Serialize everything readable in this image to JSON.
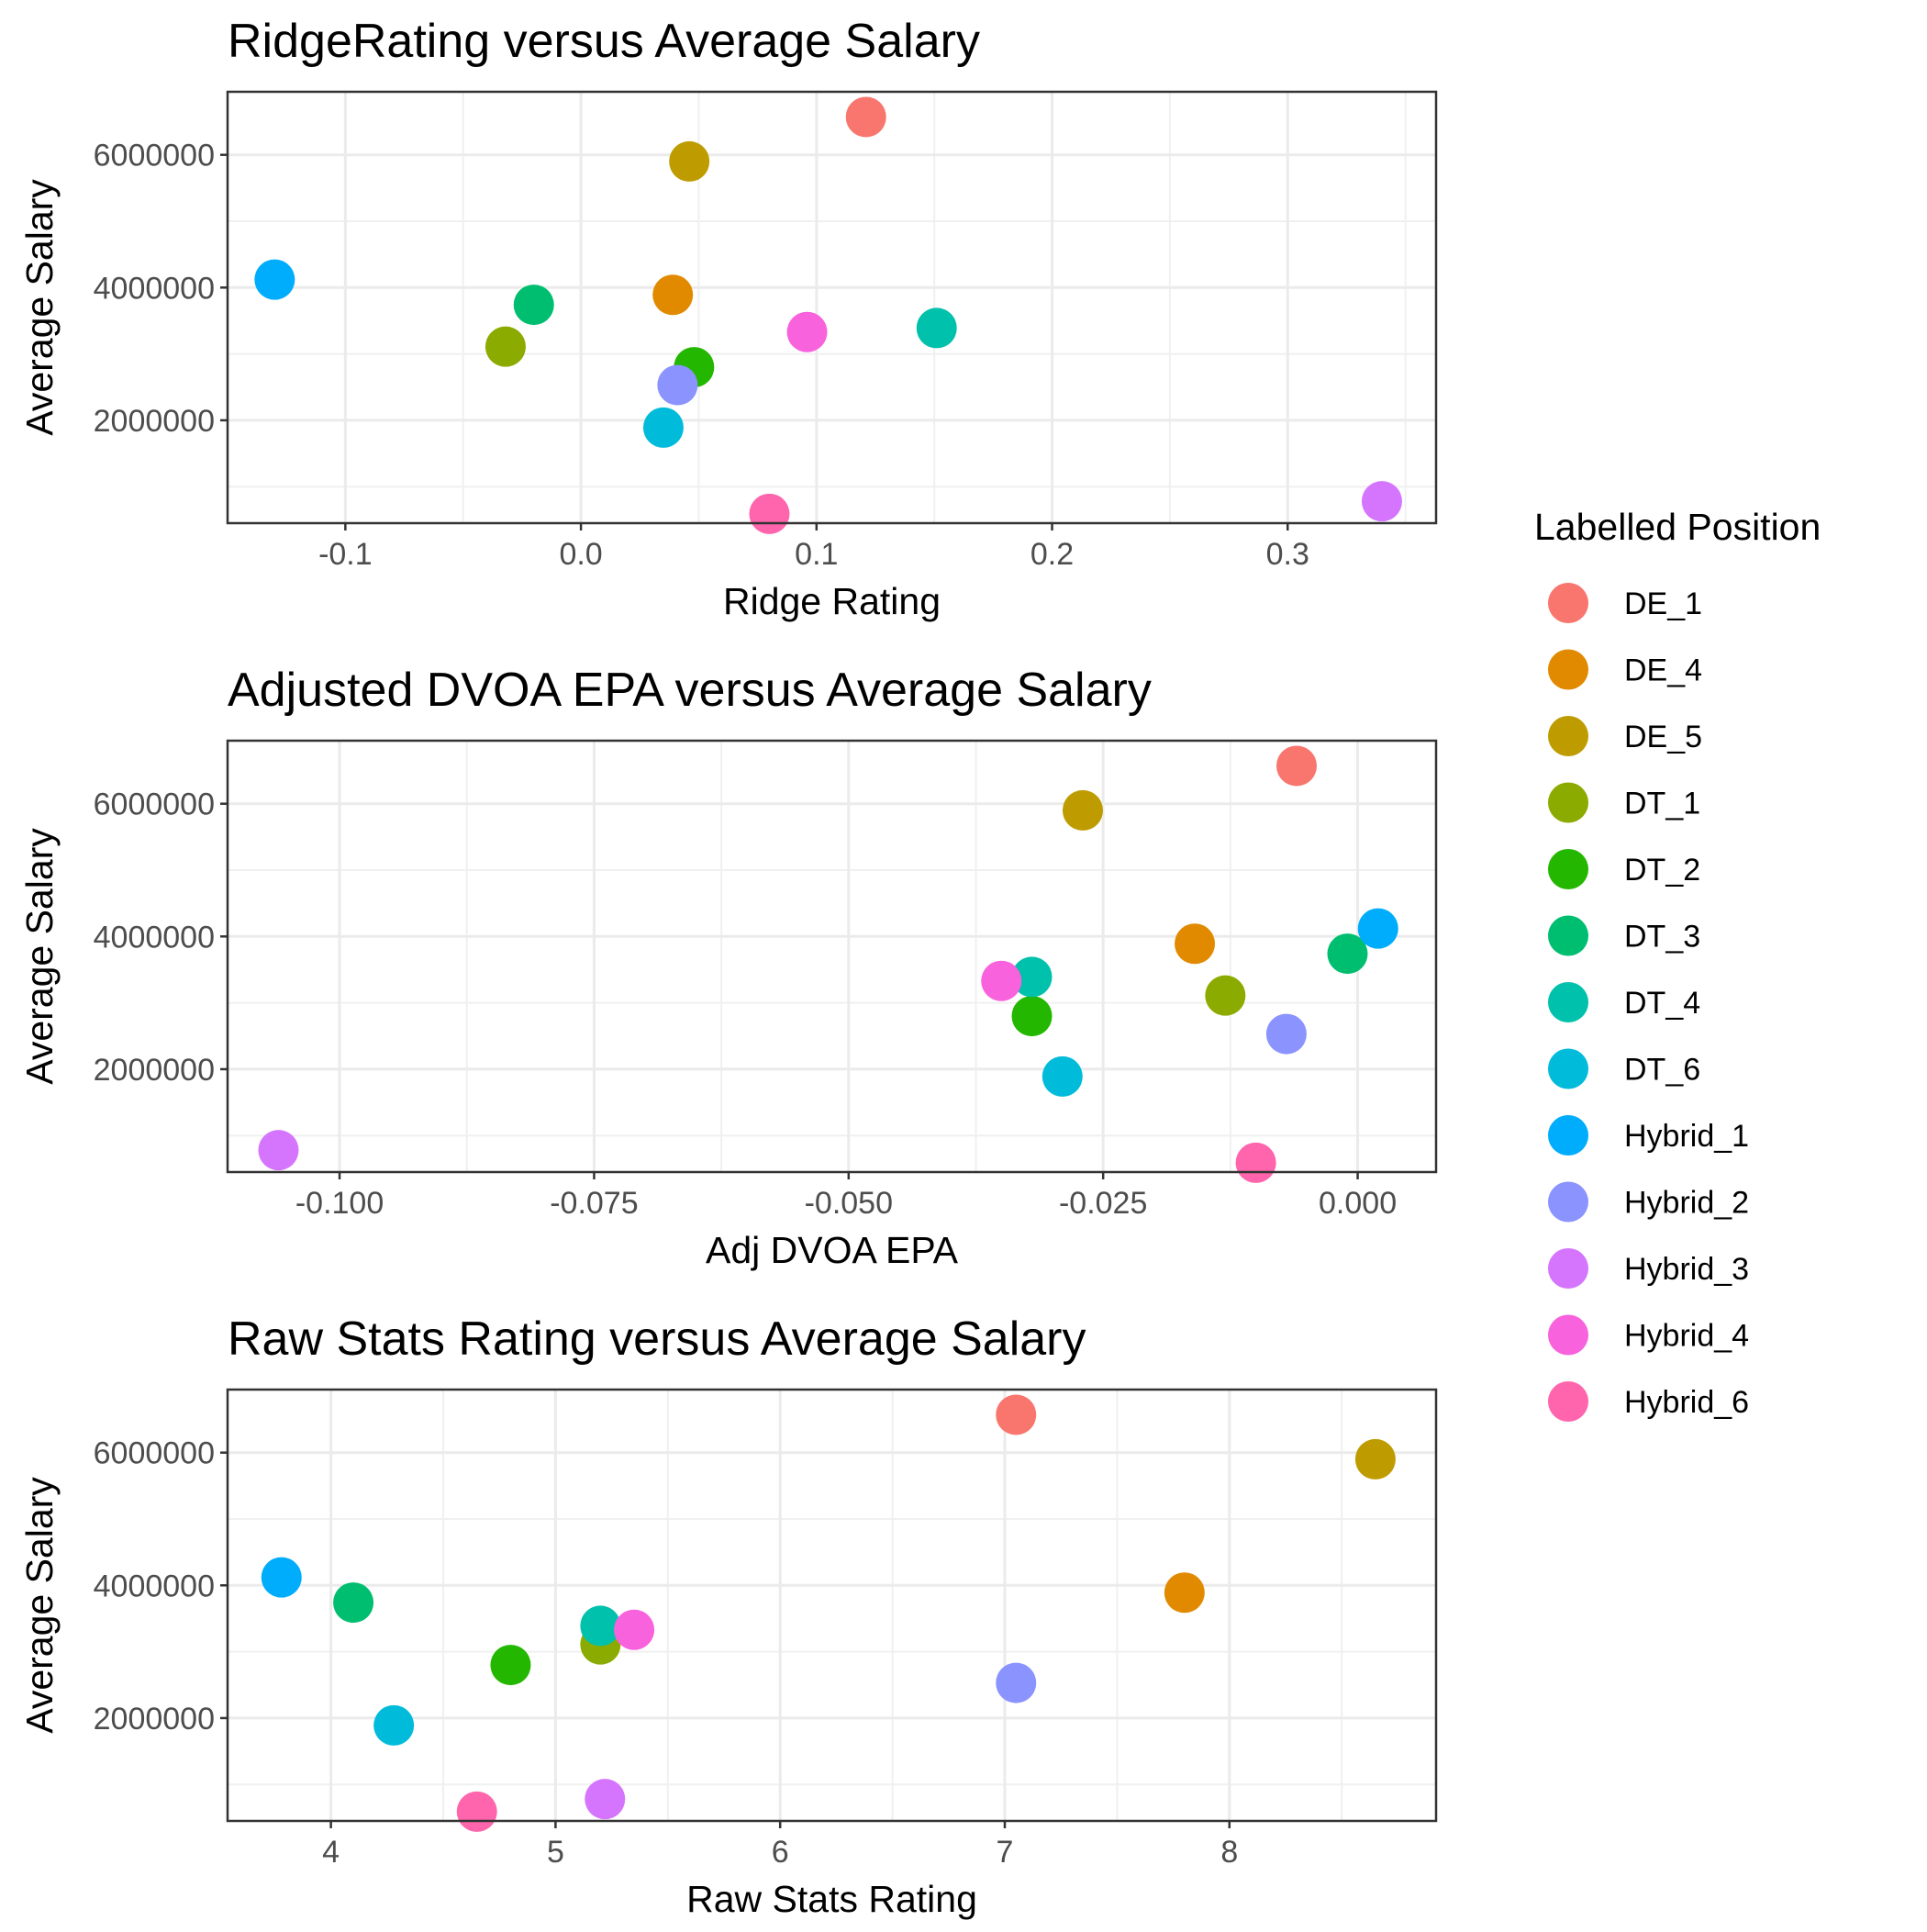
{
  "legend": {
    "title": "Labelled Position",
    "items": [
      {
        "name": "DE_1",
        "color": "#F8766D"
      },
      {
        "name": "DE_4",
        "color": "#E18A00"
      },
      {
        "name": "DE_5",
        "color": "#BE9C00"
      },
      {
        "name": "DT_1",
        "color": "#8CAB00"
      },
      {
        "name": "DT_2",
        "color": "#24B700"
      },
      {
        "name": "DT_3",
        "color": "#00BE70"
      },
      {
        "name": "DT_4",
        "color": "#00C1AB"
      },
      {
        "name": "DT_6",
        "color": "#00BBDA"
      },
      {
        "name": "Hybrid_1",
        "color": "#00ACFC"
      },
      {
        "name": "Hybrid_2",
        "color": "#8B93FF"
      },
      {
        "name": "Hybrid_3",
        "color": "#D575FE"
      },
      {
        "name": "Hybrid_4",
        "color": "#F962DD"
      },
      {
        "name": "Hybrid_6",
        "color": "#FF65AC"
      }
    ]
  },
  "chart_data": [
    {
      "type": "scatter",
      "title": "RidgeRating versus Average Salary",
      "xlabel": "Ridge Rating",
      "ylabel": "Average Salary",
      "xlim": [
        -0.15,
        0.363
      ],
      "ylim": [
        450000,
        6950000
      ],
      "xticks": [
        -0.1,
        0.0,
        0.1,
        0.2,
        0.3
      ],
      "xtick_labels": [
        "-0.1",
        "0.0",
        "0.1",
        "0.2",
        "0.3"
      ],
      "yticks": [
        2000000,
        4000000,
        6000000
      ],
      "ytick_labels": [
        "2000000",
        "4000000",
        "6000000"
      ],
      "grid": true,
      "points": [
        {
          "label": "DE_1",
          "x": 0.121,
          "y": 6570000
        },
        {
          "label": "DE_4",
          "x": 0.039,
          "y": 3890000
        },
        {
          "label": "DE_5",
          "x": 0.046,
          "y": 5900000
        },
        {
          "label": "DT_1",
          "x": -0.032,
          "y": 3110000
        },
        {
          "label": "DT_2",
          "x": 0.048,
          "y": 2800000
        },
        {
          "label": "DT_3",
          "x": -0.02,
          "y": 3740000
        },
        {
          "label": "DT_4",
          "x": 0.151,
          "y": 3390000
        },
        {
          "label": "DT_6",
          "x": 0.035,
          "y": 1890000
        },
        {
          "label": "Hybrid_1",
          "x": -0.13,
          "y": 4120000
        },
        {
          "label": "Hybrid_2",
          "x": 0.041,
          "y": 2530000
        },
        {
          "label": "Hybrid_3",
          "x": 0.34,
          "y": 780000
        },
        {
          "label": "Hybrid_4",
          "x": 0.096,
          "y": 3330000
        },
        {
          "label": "Hybrid_6",
          "x": 0.08,
          "y": 590000
        }
      ]
    },
    {
      "type": "scatter",
      "title": "Adjusted DVOA EPA versus Average Salary",
      "xlabel": "Adj DVOA EPA",
      "ylabel": "Average Salary",
      "xlim": [
        -0.111,
        0.0077
      ],
      "ylim": [
        450000,
        6950000
      ],
      "xticks": [
        -0.1,
        -0.075,
        -0.05,
        -0.025,
        0.0
      ],
      "xtick_labels": [
        "-0.100",
        "-0.075",
        "-0.050",
        "-0.025",
        "0.000"
      ],
      "yticks": [
        2000000,
        4000000,
        6000000
      ],
      "ytick_labels": [
        "2000000",
        "4000000",
        "6000000"
      ],
      "grid": true,
      "points": [
        {
          "label": "DE_1",
          "x": -0.006,
          "y": 6570000
        },
        {
          "label": "DE_4",
          "x": -0.016,
          "y": 3890000
        },
        {
          "label": "DE_5",
          "x": -0.027,
          "y": 5900000
        },
        {
          "label": "DT_1",
          "x": -0.013,
          "y": 3110000
        },
        {
          "label": "DT_2",
          "x": -0.032,
          "y": 2800000
        },
        {
          "label": "DT_3",
          "x": -0.001,
          "y": 3740000
        },
        {
          "label": "DT_4",
          "x": -0.032,
          "y": 3390000
        },
        {
          "label": "DT_6",
          "x": -0.029,
          "y": 1890000
        },
        {
          "label": "Hybrid_1",
          "x": 0.002,
          "y": 4120000
        },
        {
          "label": "Hybrid_2",
          "x": -0.007,
          "y": 2530000
        },
        {
          "label": "Hybrid_3",
          "x": -0.106,
          "y": 780000
        },
        {
          "label": "Hybrid_4",
          "x": -0.035,
          "y": 3330000
        },
        {
          "label": "Hybrid_6",
          "x": -0.01,
          "y": 590000
        }
      ]
    },
    {
      "type": "scatter",
      "title": "Raw Stats Rating versus Average Salary",
      "xlabel": "Raw Stats Rating",
      "ylabel": "Average Salary",
      "xlim": [
        3.54,
        8.92
      ],
      "ylim": [
        450000,
        6950000
      ],
      "xticks": [
        4,
        5,
        6,
        7,
        8
      ],
      "xtick_labels": [
        "4",
        "5",
        "6",
        "7",
        "8"
      ],
      "yticks": [
        2000000,
        4000000,
        6000000
      ],
      "ytick_labels": [
        "2000000",
        "4000000",
        "6000000"
      ],
      "grid": true,
      "points": [
        {
          "label": "DE_1",
          "x": 7.05,
          "y": 6570000
        },
        {
          "label": "DE_4",
          "x": 7.8,
          "y": 3890000
        },
        {
          "label": "DE_5",
          "x": 8.65,
          "y": 5900000
        },
        {
          "label": "DT_1",
          "x": 5.2,
          "y": 3110000
        },
        {
          "label": "DT_2",
          "x": 4.8,
          "y": 2800000
        },
        {
          "label": "DT_3",
          "x": 4.1,
          "y": 3740000
        },
        {
          "label": "DT_4",
          "x": 5.2,
          "y": 3390000
        },
        {
          "label": "DT_6",
          "x": 4.28,
          "y": 1890000
        },
        {
          "label": "Hybrid_1",
          "x": 3.78,
          "y": 4120000
        },
        {
          "label": "Hybrid_2",
          "x": 7.05,
          "y": 2530000
        },
        {
          "label": "Hybrid_3",
          "x": 5.22,
          "y": 780000
        },
        {
          "label": "Hybrid_4",
          "x": 5.35,
          "y": 3330000
        },
        {
          "label": "Hybrid_6",
          "x": 4.65,
          "y": 590000
        }
      ]
    }
  ]
}
